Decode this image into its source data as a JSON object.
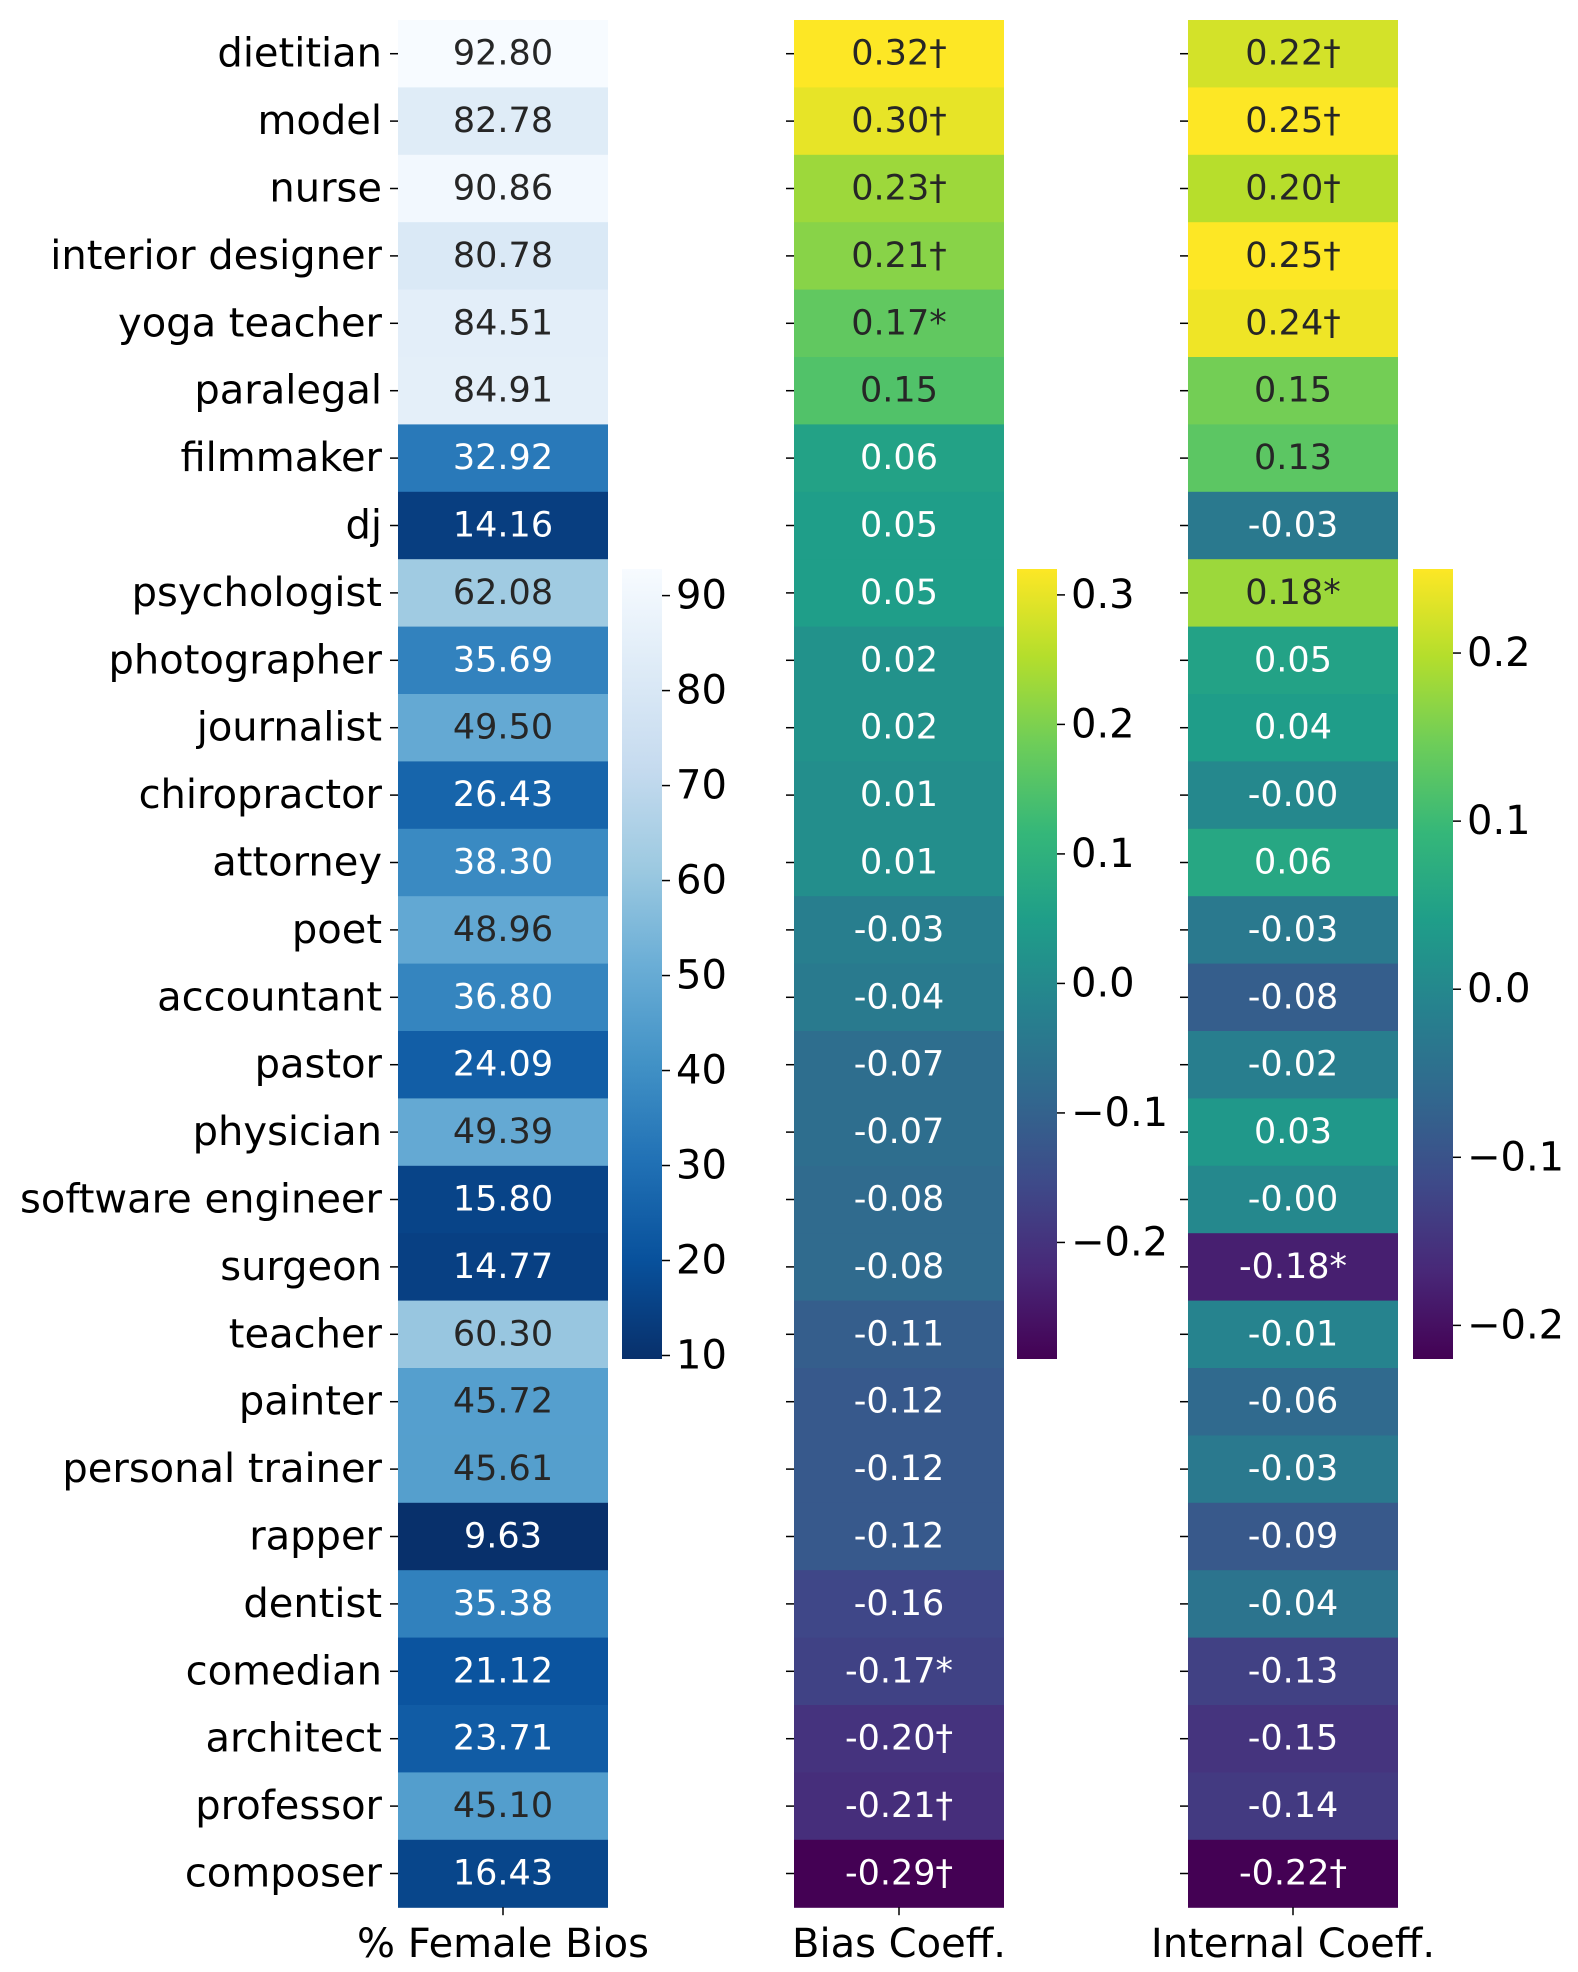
{
  "chart_data": {
    "type": "heatmap",
    "rows": [
      "dietitian",
      "model",
      "nurse",
      "interior designer",
      "yoga teacher",
      "paralegal",
      "filmmaker",
      "dj",
      "psychologist",
      "photographer",
      "journalist",
      "chiropractor",
      "attorney",
      "poet",
      "accountant",
      "pastor",
      "physician",
      "software engineer",
      "surgeon",
      "teacher",
      "painter",
      "personal trainer",
      "rapper",
      "dentist",
      "comedian",
      "architect",
      "professor",
      "composer"
    ],
    "columns": [
      {
        "name": "% Female Bios",
        "colormap": "Blues_r",
        "vmin": 9.63,
        "vmax": 92.8,
        "colorbar_ticks": [
          "10",
          "20",
          "30",
          "40",
          "50",
          "60",
          "70",
          "80",
          "90"
        ],
        "values": [
          92.8,
          82.78,
          90.86,
          80.78,
          84.51,
          84.91,
          32.92,
          14.16,
          62.08,
          35.69,
          49.5,
          26.43,
          38.3,
          48.96,
          36.8,
          24.09,
          49.39,
          15.8,
          14.77,
          60.3,
          45.72,
          45.61,
          9.63,
          35.38,
          21.12,
          23.71,
          45.1,
          16.43
        ],
        "labels": [
          "92.80",
          "82.78",
          "90.86",
          "80.78",
          "84.51",
          "84.91",
          "32.92",
          "14.16",
          "62.08",
          "35.69",
          "49.50",
          "26.43",
          "38.30",
          "48.96",
          "36.80",
          "24.09",
          "49.39",
          "15.80",
          "14.77",
          "60.30",
          "45.72",
          "45.61",
          "9.63",
          "35.38",
          "21.12",
          "23.71",
          "45.10",
          "16.43"
        ]
      },
      {
        "name": "Bias Coeff.",
        "colormap": "viridis",
        "vmin": -0.29,
        "vmax": 0.32,
        "colorbar_ticks": [
          "0.3",
          "0.2",
          "0.1",
          "0.0",
          "−0.1",
          "−0.2"
        ],
        "values": [
          0.32,
          0.3,
          0.23,
          0.21,
          0.17,
          0.15,
          0.06,
          0.05,
          0.05,
          0.02,
          0.02,
          0.01,
          0.01,
          -0.03,
          -0.04,
          -0.07,
          -0.07,
          -0.08,
          -0.08,
          -0.11,
          -0.12,
          -0.12,
          -0.12,
          -0.16,
          -0.17,
          -0.2,
          -0.21,
          -0.29
        ],
        "labels": [
          "0.32†",
          "0.30†",
          "0.23†",
          "0.21†",
          "0.17*",
          "0.15",
          "0.06",
          "0.05",
          "0.05",
          "0.02",
          "0.02",
          "0.01",
          "0.01",
          "-0.03",
          "-0.04",
          "-0.07",
          "-0.07",
          "-0.08",
          "-0.08",
          "-0.11",
          "-0.12",
          "-0.12",
          "-0.12",
          "-0.16",
          "-0.17*",
          "-0.20†",
          "-0.21†",
          "-0.29†"
        ]
      },
      {
        "name": "Internal Coeff.",
        "colormap": "viridis",
        "vmin": -0.22,
        "vmax": 0.25,
        "colorbar_ticks": [
          "0.2",
          "0.1",
          "0.0",
          "−0.1",
          "−0.2"
        ],
        "values": [
          0.22,
          0.25,
          0.2,
          0.25,
          0.24,
          0.15,
          0.13,
          -0.03,
          0.18,
          0.05,
          0.04,
          -0.0,
          0.06,
          -0.03,
          -0.08,
          -0.02,
          0.03,
          -0.0,
          -0.18,
          -0.01,
          -0.06,
          -0.03,
          -0.09,
          -0.04,
          -0.13,
          -0.15,
          -0.14,
          -0.22
        ],
        "labels": [
          "0.22†",
          "0.25†",
          "0.20†",
          "0.25†",
          "0.24†",
          "0.15",
          "0.13",
          "-0.03",
          "0.18*",
          "0.05",
          "0.04",
          "-0.00",
          "0.06",
          "-0.03",
          "-0.08",
          "-0.02",
          "0.03",
          "-0.00",
          "-0.18*",
          "-0.01",
          "-0.06",
          "-0.03",
          "-0.09",
          "-0.04",
          "-0.13",
          "-0.15",
          "-0.14",
          "-0.22†"
        ]
      }
    ]
  }
}
